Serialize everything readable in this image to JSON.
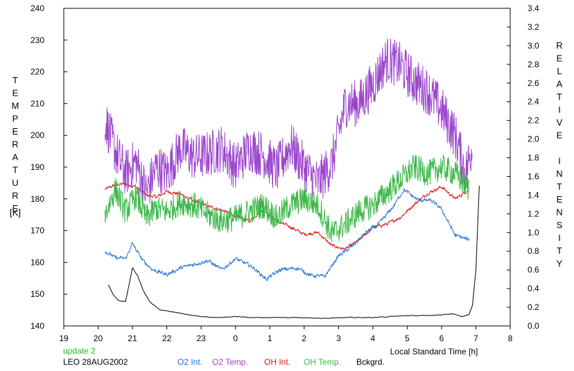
{
  "chart_data": {
    "type": "line",
    "y_left": {
      "label": "TEMPERATURE",
      "unit": "[K]",
      "range": [
        140,
        240
      ],
      "ticks": [
        140,
        150,
        160,
        170,
        180,
        190,
        200,
        210,
        220,
        230,
        240
      ]
    },
    "y_right": {
      "label": "RELATIVE INTENSITY",
      "range": [
        0.0,
        3.4
      ],
      "ticks": [
        "0.0",
        "0.2",
        "0.4",
        "0.6",
        "0.8",
        "1.0",
        "1.2",
        "1.4",
        "1.6",
        "1.8",
        "2.0",
        "2.2",
        "2.4",
        "2.6",
        "2.8",
        "3.0",
        "3.2",
        "3.4"
      ]
    },
    "x": {
      "label": "Local Standard Time [h]",
      "tick_labels": [
        "19",
        "20",
        "21",
        "22",
        "23",
        "0",
        "1",
        "2",
        "3",
        "4",
        "5",
        "6",
        "7",
        "8"
      ],
      "range_hours": [
        19,
        32
      ]
    },
    "grid": false,
    "series": [
      {
        "name": "O2 Int.",
        "color": "#1e6fd9",
        "axis": "right",
        "x": [
          20.2,
          20.5,
          20.8,
          21.0,
          21.3,
          21.6,
          22.0,
          22.4,
          22.8,
          23.2,
          23.6,
          24.0,
          24.5,
          24.9,
          25.3,
          25.8,
          26.2,
          26.6,
          27.0,
          27.4,
          27.8,
          28.2,
          28.6,
          28.9,
          29.3,
          29.7,
          30.0,
          30.4,
          30.8
        ],
        "y": [
          0.8,
          0.73,
          0.72,
          0.88,
          0.7,
          0.6,
          0.55,
          0.62,
          0.66,
          0.7,
          0.6,
          0.72,
          0.63,
          0.5,
          0.6,
          0.62,
          0.54,
          0.53,
          0.75,
          0.85,
          1.0,
          1.1,
          1.28,
          1.46,
          1.35,
          1.34,
          1.25,
          0.97,
          0.92
        ]
      },
      {
        "name": "O2 Temp.",
        "color": "#9b45cc",
        "axis": "left",
        "x": [
          20.2,
          20.5,
          20.8,
          21.1,
          21.4,
          21.7,
          22.0,
          22.4,
          22.8,
          23.2,
          23.6,
          24.0,
          24.4,
          24.8,
          25.2,
          25.6,
          26.0,
          26.4,
          26.8,
          27.2,
          27.6,
          28.0,
          28.4,
          28.8,
          29.2,
          29.6,
          30.0,
          30.4,
          30.7,
          30.9
        ],
        "y": [
          205,
          195,
          188,
          192,
          182,
          190,
          188,
          196,
          193,
          194,
          196,
          190,
          196,
          194,
          189,
          197,
          190,
          185,
          191,
          210,
          210,
          216,
          224,
          222,
          217,
          214,
          208,
          200,
          188,
          197
        ]
      },
      {
        "name": "OH Int.",
        "color": "#dd1111",
        "axis": "right",
        "x": [
          20.2,
          20.5,
          20.8,
          21.1,
          21.4,
          21.7,
          22.0,
          22.4,
          22.8,
          23.2,
          23.6,
          24.0,
          24.4,
          24.8,
          25.2,
          25.6,
          26.0,
          26.4,
          26.8,
          27.2,
          27.6,
          28.0,
          28.4,
          28.8,
          29.2,
          29.6,
          30.0,
          30.4,
          30.8
        ],
        "y": [
          1.46,
          1.51,
          1.52,
          1.49,
          1.4,
          1.38,
          1.44,
          1.41,
          1.34,
          1.28,
          1.24,
          1.18,
          1.12,
          1.25,
          1.12,
          1.06,
          0.98,
          1.0,
          0.86,
          0.82,
          0.92,
          1.05,
          1.09,
          1.16,
          1.3,
          1.42,
          1.49,
          1.36,
          1.46
        ]
      },
      {
        "name": "OH Temp.",
        "color": "#3cb84a",
        "axis": "left",
        "x": [
          20.2,
          20.5,
          20.8,
          21.1,
          21.4,
          21.7,
          22.0,
          22.4,
          22.8,
          23.2,
          23.6,
          24.0,
          24.4,
          24.8,
          25.2,
          25.6,
          26.0,
          26.4,
          26.8,
          27.2,
          27.6,
          28.0,
          28.4,
          28.8,
          29.2,
          29.6,
          30.0,
          30.4,
          30.8
        ],
        "y": [
          175,
          183,
          176,
          181,
          174,
          177,
          176,
          179,
          178,
          175,
          173,
          174,
          176,
          178,
          174,
          178,
          180,
          178,
          169,
          172,
          176,
          178,
          182,
          186,
          190,
          188,
          190,
          188,
          183
        ]
      },
      {
        "name": "Bckgrd.",
        "color": "#000000",
        "axis": "right",
        "x": [
          20.3,
          20.45,
          20.6,
          20.8,
          21.0,
          21.15,
          21.3,
          21.5,
          21.8,
          22.2,
          22.6,
          23.0,
          23.5,
          24.0,
          24.5,
          25.0,
          25.5,
          26.0,
          26.5,
          27.0,
          27.5,
          28.0,
          28.5,
          29.0,
          29.5,
          30.0,
          30.3,
          30.6,
          30.8,
          30.9,
          31.0,
          31.1
        ],
        "y": [
          0.44,
          0.33,
          0.27,
          0.26,
          0.62,
          0.54,
          0.39,
          0.26,
          0.17,
          0.15,
          0.12,
          0.1,
          0.09,
          0.1,
          0.09,
          0.09,
          0.09,
          0.09,
          0.08,
          0.09,
          0.09,
          0.09,
          0.1,
          0.11,
          0.11,
          0.12,
          0.13,
          0.1,
          0.12,
          0.22,
          0.6,
          1.5
        ]
      }
    ]
  },
  "footer": {
    "update_note": "update 2",
    "station_date": "LEO 28AUG2002",
    "legend_colors": {
      "o2_int": "#1e6fd9",
      "o2_temp": "#9b45cc",
      "oh_int": "#dd1111",
      "oh_temp": "#3cb84a",
      "bckgrd": "#000000"
    },
    "update_color": "#22bb22"
  }
}
